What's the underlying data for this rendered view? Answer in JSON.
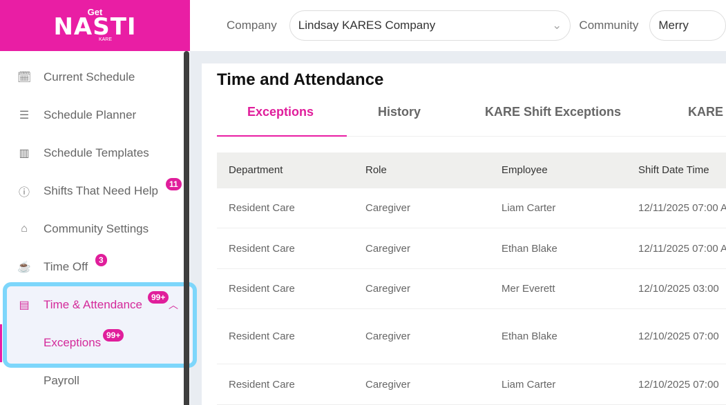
{
  "logo": {
    "get": "Get",
    "name": "NASTI",
    "kare": "KARE"
  },
  "topbar": {
    "company_label": "Company",
    "company_value": "Lindsay KARES Company",
    "community_label": "Community",
    "community_value": "Merry"
  },
  "sidebar": {
    "items": [
      {
        "label": "Current Schedule",
        "icon": "calendar-check-icon"
      },
      {
        "label": "Schedule Planner",
        "icon": "sliders-icon"
      },
      {
        "label": "Schedule Templates",
        "icon": "template-icon"
      },
      {
        "label": "Shifts That Need Help",
        "icon": "help-circle-icon",
        "badge": "11"
      },
      {
        "label": "Community Settings",
        "icon": "house-gear-icon"
      },
      {
        "label": "Time Off",
        "icon": "coffee-icon",
        "badge": "3"
      },
      {
        "label": "Time & Attendance",
        "icon": "calendar-list-icon",
        "badge": "99+",
        "active": true
      },
      {
        "label": "Exceptions",
        "badge": "99+",
        "active": true
      },
      {
        "label": "Payroll"
      }
    ]
  },
  "colors": {
    "accent": "#e91ea4",
    "highlight": "#7dd6fb"
  },
  "main": {
    "title": "Time and Attendance",
    "tabs": [
      "Exceptions",
      "History",
      "KARE Shift Exceptions",
      "KARE"
    ],
    "columns": [
      "Department",
      "Role",
      "Employee",
      "Shift Date Time"
    ],
    "rows": [
      [
        "Resident Care",
        "Caregiver",
        "Liam Carter",
        "12/11/2025 07:00 A"
      ],
      [
        "Resident Care",
        "Caregiver",
        "Ethan Blake",
        "12/11/2025 07:00 A"
      ],
      [
        "Resident Care",
        "Caregiver",
        "Mer Everett",
        "12/10/2025 03:00"
      ],
      [
        "Resident Care",
        "Caregiver",
        "Ethan Blake",
        "12/10/2025 07:00"
      ],
      [
        "Resident Care",
        "Caregiver",
        "Liam Carter",
        "12/10/2025 07:00"
      ]
    ]
  }
}
